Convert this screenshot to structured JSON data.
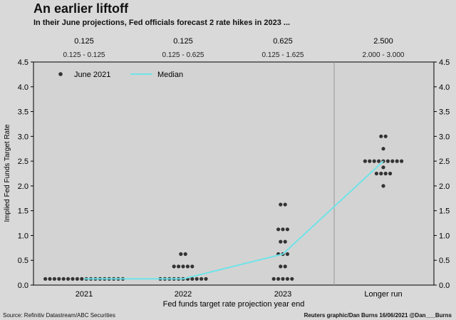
{
  "title": "An earlier liftoff",
  "subtitle": "In their June projections, Fed officials forecast 2 rate hikes in 2023 ...",
  "source": "Source: Refinitiv Datastream/ABC Securities",
  "credit": "Reuters graphic/Dan Burns 16/06/2021 @Dan___Burns",
  "chart_data": {
    "type": "scatter",
    "title": "",
    "xlabel": "Fed funds target rate projection year end",
    "ylabel": "Implied Fed Funds Target Rate",
    "categories": [
      "2021",
      "2022",
      "2023",
      "Longer run"
    ],
    "ylim": [
      0,
      4.5
    ],
    "yticks": [
      "0.0",
      "0.5",
      "1.0",
      "1.5",
      "2.0",
      "2.5",
      "3.0",
      "3.5",
      "4.0",
      "4.5"
    ],
    "grid": false,
    "legend_position": "top-left",
    "medians": [
      "0.125",
      "0.125",
      "0.625",
      "2.500"
    ],
    "ranges": [
      "0.125 - 0.125",
      "0.125 - 0.625",
      "0.125 - 1.625",
      "2.000 - 3.000"
    ],
    "series": [
      {
        "name": "June 2021",
        "points": [
          [
            {
              "y": 0.125,
              "n": 18
            }
          ],
          [
            {
              "y": 0.125,
              "n": 11
            },
            {
              "y": 0.375,
              "n": 5
            },
            {
              "y": 0.625,
              "n": 2
            }
          ],
          [
            {
              "y": 0.125,
              "n": 5
            },
            {
              "y": 0.375,
              "n": 2
            },
            {
              "y": 0.625,
              "n": 3
            },
            {
              "y": 0.875,
              "n": 2
            },
            {
              "y": 1.125,
              "n": 3
            },
            {
              "y": 1.625,
              "n": 2
            }
          ],
          [
            {
              "y": 2.0,
              "n": 1
            },
            {
              "y": 2.25,
              "n": 4
            },
            {
              "y": 2.375,
              "n": 1
            },
            {
              "y": 2.5,
              "n": 9
            },
            {
              "y": 2.75,
              "n": 1
            },
            {
              "y": 3.0,
              "n": 2
            }
          ]
        ],
        "color": "#333333"
      },
      {
        "name": "Median",
        "values": [
          0.125,
          0.125,
          0.625,
          2.5
        ],
        "color": "#6fe3e8"
      }
    ]
  }
}
